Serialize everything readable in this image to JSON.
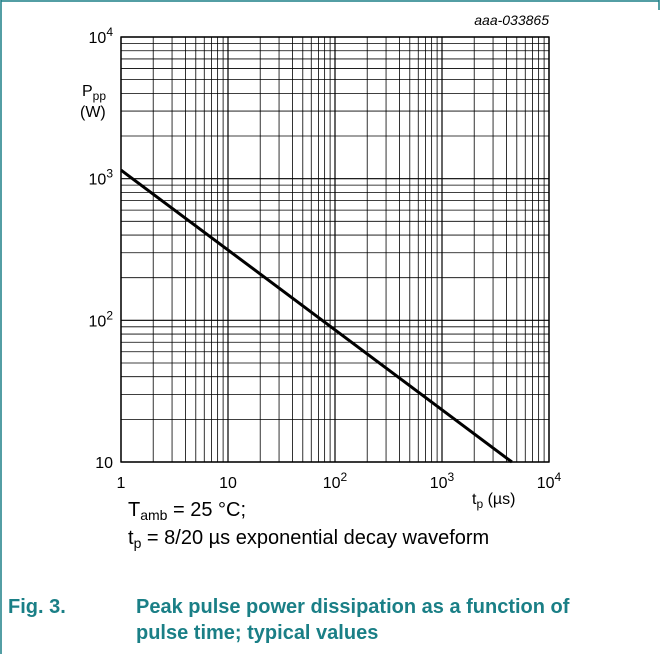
{
  "chart_data": {
    "type": "line",
    "id_label": "aaa-033865",
    "title": "",
    "xlabel": "tp (µs)",
    "xlabel_main": "t",
    "xlabel_sub": "p",
    "xlabel_unit": "(µs)",
    "ylabel_main": "P",
    "ylabel_sub": "pp",
    "ylabel_unit": "(W)",
    "xscale": "log",
    "yscale": "log",
    "xlim": [
      1,
      10000
    ],
    "ylim": [
      10,
      10000
    ],
    "grid": true,
    "x_ticks": [
      {
        "value": 1,
        "base": "1",
        "exp": ""
      },
      {
        "value": 10,
        "base": "10",
        "exp": ""
      },
      {
        "value": 100,
        "base": "10",
        "exp": "2"
      },
      {
        "value": 1000,
        "base": "10",
        "exp": "3"
      },
      {
        "value": 10000,
        "base": "10",
        "exp": "4"
      }
    ],
    "y_ticks": [
      {
        "value": 10,
        "base": "10",
        "exp": ""
      },
      {
        "value": 100,
        "base": "10",
        "exp": "2"
      },
      {
        "value": 1000,
        "base": "10",
        "exp": "3"
      },
      {
        "value": 10000,
        "base": "10",
        "exp": "4"
      }
    ],
    "series": [
      {
        "x": [
          1,
          4500
        ],
        "y": [
          1150,
          10
        ]
      }
    ]
  },
  "notes": {
    "temp_main": "T",
    "temp_sub": "amb",
    "temp_rest": " = 25 °C;",
    "wave_main": "t",
    "wave_sub": "p",
    "wave_rest": " = 8/20 µs exponential decay waveform"
  },
  "figure": {
    "number": "Fig. 3.",
    "caption": "Peak pulse power dissipation as a function of pulse time; typical values"
  },
  "colors": {
    "caption": "#1a7f86",
    "frame": "#1a7f86"
  }
}
